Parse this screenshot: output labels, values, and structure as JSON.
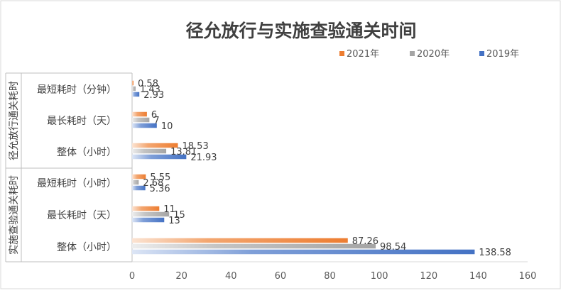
{
  "chart_data": {
    "type": "bar",
    "orientation": "horizontal",
    "title": "径允放行与实施查验通关时间",
    "groups": [
      {
        "label": "径允放行通关耗时",
        "categories": [
          "最短耗时（分钟）",
          "最长耗时（天）",
          "整体（小时）"
        ]
      },
      {
        "label": "实施查验通关耗时",
        "categories": [
          "最短耗时（小时）",
          "最长耗时（天）",
          "整体（小时）"
        ]
      }
    ],
    "series": [
      {
        "name": "2021年",
        "color": "#ED7D31",
        "values": [
          0.58,
          6,
          18.53,
          5.55,
          11,
          87.26
        ],
        "labels": [
          "0.58",
          "6",
          "18.53",
          "5.55",
          "11",
          "87.26"
        ]
      },
      {
        "name": "2020年",
        "color": "#A5A5A5",
        "values": [
          1.43,
          7,
          13.81,
          2.68,
          15,
          98.54
        ],
        "labels": [
          "1.43",
          "7",
          "13.81",
          "2.68",
          "15",
          "98.54"
        ]
      },
      {
        "name": "2019年",
        "color": "#4472C4",
        "values": [
          2.93,
          10,
          21.93,
          5.36,
          13,
          138.58
        ],
        "labels": [
          "2.93",
          "10",
          "21.93",
          "5.36",
          "13",
          "138.58"
        ]
      }
    ],
    "xlim": [
      0,
      160
    ],
    "xticks": [
      0,
      20,
      40,
      60,
      80,
      100,
      120,
      140,
      160
    ],
    "legend_position": "top-right",
    "grid": false
  }
}
